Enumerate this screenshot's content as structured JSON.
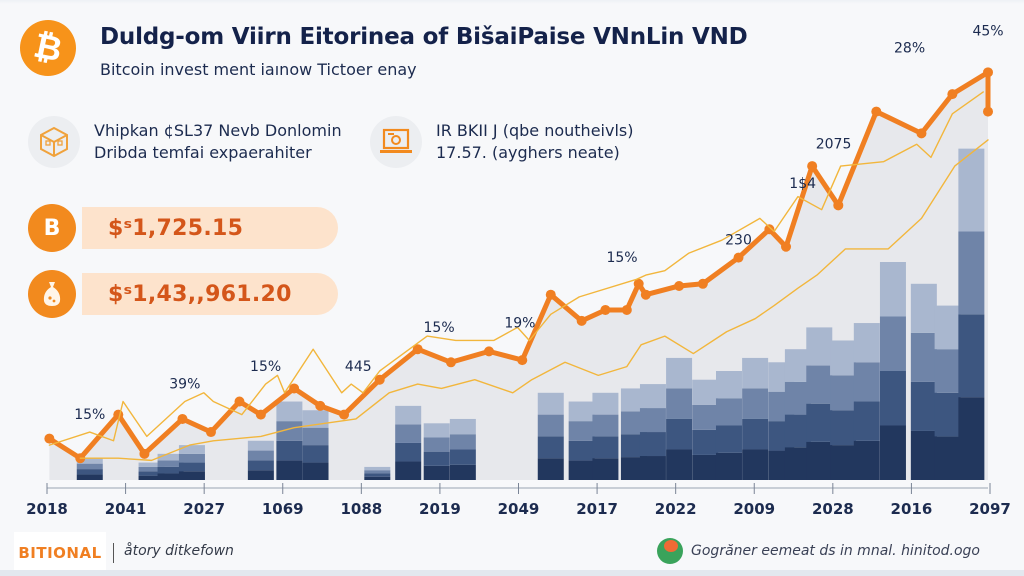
{
  "header": {
    "title": "Duldg-om Viirn Eitorinea of BišaiPaise VNnLin VND",
    "subtitle": "Bitcoin invest ment iaınow Tictoer enay",
    "logo_icon": "bitcoin-icon"
  },
  "info_cards": [
    {
      "icon": "cube-icon",
      "line1": "Vhipkan ¢SL37 Nevb Donlomin",
      "line2": "Dribda temfai expaerahiter"
    },
    {
      "icon": "laptop-chart-icon",
      "line1": "IR BKII J (qbe noutheivls)",
      "line2": "17.57. (ayghers neate)"
    }
  ],
  "prices": [
    {
      "icon": "bitcoin-coin-icon",
      "value": "$ˢ1,725.15"
    },
    {
      "icon": "money-bag-icon",
      "value": "$ˢ1,43,,961.20"
    }
  ],
  "footer": {
    "brand": "BITIONAL",
    "tagline": "åtory ditkefown",
    "right_text": "Gogrăner eemeat ds in mnal. hinitod.ogo",
    "right_icon": "chat-bubble-icon"
  },
  "colors": {
    "accent_orange": "#f07f22",
    "secondary_yellow": "#f2b63c",
    "bar_dark": "#2b3f66",
    "bar_light": "#a8b6cf",
    "text_dark": "#14224a",
    "price_text": "#d4561a",
    "pill_bg": "#fde3cc"
  },
  "chart_data": {
    "type": "line",
    "title": "",
    "xlabel": "",
    "ylabel": "",
    "grid": false,
    "ylim": [
      0,
      100
    ],
    "x_tick_labels": [
      "2018",
      "2041",
      "2027",
      "1069",
      "1088",
      "2019",
      "2049",
      "2017",
      "2022",
      "2009",
      "2028",
      "2016",
      "2097"
    ],
    "series": [
      {
        "name": "primary",
        "style": "orange-thick",
        "x": [
          0.05,
          0.7,
          1.5,
          2.05,
          2.85,
          3.45,
          4.05,
          4.5,
          5.2,
          5.75,
          6.25,
          7.0,
          7.8,
          8.5,
          9.3,
          10.0,
          10.6,
          11.25,
          11.75,
          12.2,
          12.45,
          12.6,
          13.3,
          13.8,
          14.55,
          15.2,
          15.55,
          16.1,
          16.65,
          17.45,
          18.4,
          19.05,
          19.8,
          19.8
        ],
        "values": [
          9.5,
          5,
          15,
          6,
          14,
          11,
          18,
          15,
          21,
          17,
          15,
          23,
          30,
          27,
          29.5,
          27.5,
          42.5,
          36.5,
          39,
          39,
          45,
          42.5,
          44.5,
          45,
          51,
          57.5,
          53.5,
          72,
          63,
          84.5,
          79.5,
          88.5,
          93.5,
          84.5
        ]
      },
      {
        "name": "secondary-upper",
        "style": "yellow-thin",
        "x": [
          0.05,
          0.9,
          1.4,
          1.6,
          2.1,
          2.9,
          3.3,
          3.5,
          4.1,
          4.6,
          4.85,
          5.0,
          5.6,
          6.2,
          6.4,
          6.65,
          7.0,
          8.0,
          8.6,
          9.4,
          9.9,
          10.15,
          10.6,
          11.2,
          12.4,
          12.6,
          13.0,
          13.5,
          14.2,
          15.0,
          15.3,
          15.8,
          16.3,
          16.7,
          17.6,
          18.3,
          18.6,
          19.05,
          19.7
        ],
        "values": [
          8,
          11,
          9,
          18,
          10,
          18,
          20,
          18,
          15,
          22,
          24,
          20,
          30,
          20,
          22,
          20,
          25,
          33,
          32,
          32,
          35,
          32,
          38,
          42,
          46,
          47,
          48,
          52,
          55,
          60,
          57,
          65,
          62,
          72,
          73,
          77,
          74,
          84,
          89
        ]
      },
      {
        "name": "secondary-lower",
        "style": "yellow-thin",
        "x": [
          0.7,
          1.5,
          2.2,
          3.0,
          3.5,
          4.5,
          5.2,
          6.5,
          7.2,
          7.8,
          8.3,
          9.0,
          9.8,
          10.2,
          10.9,
          11.6,
          12.2,
          12.5,
          13.0,
          13.6,
          14.3,
          14.9,
          15.3,
          15.8,
          16.2,
          16.8,
          17.7,
          18.4,
          19.1,
          19.8
        ],
        "values": [
          5,
          5,
          4.5,
          8,
          9,
          10,
          12,
          14,
          20,
          22,
          21,
          23,
          20,
          23,
          27,
          24,
          26,
          31,
          33,
          29,
          34,
          37,
          40,
          44,
          47,
          53,
          53,
          60,
          72,
          78
        ]
      }
    ],
    "bars": {
      "x": [
        0.9,
        2.2,
        2.6,
        3.05,
        4.5,
        5.1,
        5.65,
        6.95,
        7.6,
        8.2,
        8.75,
        10.6,
        11.25,
        11.75,
        12.35,
        12.75,
        13.3,
        13.85,
        14.35,
        14.9,
        15.45,
        15.8,
        16.25,
        16.75,
        17.25,
        17.8,
        18.45,
        18.95,
        19.45
      ],
      "values": [
        5,
        4,
        6,
        8,
        9,
        18,
        16,
        3,
        17,
        13,
        14,
        20,
        18,
        20,
        21,
        22,
        28,
        23,
        25,
        28,
        27,
        30,
        35,
        32,
        36,
        50,
        45,
        40,
        76
      ],
      "stack_fractions": [
        0.25,
        0.25,
        0.25,
        0.25
      ]
    },
    "annotations": [
      {
        "text": "15%",
        "x": 0.9,
        "y": 14
      },
      {
        "text": "39%",
        "x": 2.9,
        "y": 21
      },
      {
        "text": "15%",
        "x": 4.6,
        "y": 25
      },
      {
        "text": "445",
        "x": 6.55,
        "y": 25
      },
      {
        "text": "15%",
        "x": 8.25,
        "y": 34
      },
      {
        "text": "19%",
        "x": 9.95,
        "y": 35
      },
      {
        "text": "15%",
        "x": 12.1,
        "y": 50
      },
      {
        "text": "230",
        "x": 14.55,
        "y": 54
      },
      {
        "text": "1$4",
        "x": 15.9,
        "y": 67
      },
      {
        "text": "2075",
        "x": 16.55,
        "y": 76
      },
      {
        "text": "28%",
        "x": 18.15,
        "y": 98
      },
      {
        "text": "45%",
        "x": 19.8,
        "y": 102
      }
    ]
  }
}
